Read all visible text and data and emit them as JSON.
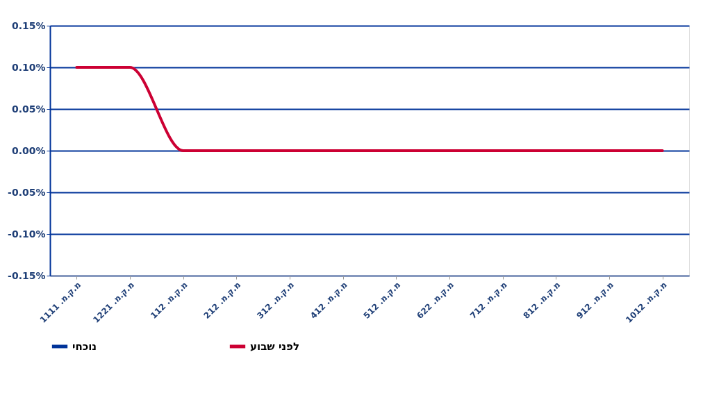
{
  "chart_data": {
    "type": "line",
    "categories": [
      "מ.ק.מ. 1111",
      "מ.ק.מ. 1221",
      "מ.ק.מ. 112",
      "מ.ק.מ. 212",
      "מ.ק.מ. 312",
      "מ.ק.מ. 412",
      "מ.ק.מ. 512",
      "מ.ק.מ. 622",
      "מ.ק.מ. 712",
      "מ.ק.מ. 812",
      "מ.ק.מ. 912",
      "מ.ק.מ. 1012"
    ],
    "series": [
      {
        "name": "נוכחי",
        "color": "#003399",
        "values": [
          null,
          null,
          null,
          null,
          null,
          null,
          null,
          null,
          null,
          null,
          null,
          null
        ]
      },
      {
        "name": "לפני שבוע",
        "color": "#cc0033",
        "values": [
          0.1,
          0.1,
          0.0,
          0.0,
          0.0,
          0.0,
          0.0,
          0.0,
          0.0,
          0.0,
          0.0,
          0.0
        ]
      }
    ],
    "ylim": [
      -0.15,
      0.15
    ],
    "yticks": [
      {
        "value": -0.15,
        "label": "-0.15%"
      },
      {
        "value": -0.1,
        "label": "-0.10%"
      },
      {
        "value": -0.05,
        "label": "-0.05%"
      },
      {
        "value": 0,
        "label": "0.00%"
      },
      {
        "value": 0.05,
        "label": "0.05%"
      },
      {
        "value": 0.1,
        "label": "0.10%"
      },
      {
        "value": 0.15,
        "label": "0.15%"
      }
    ],
    "grid": "y",
    "legend": "bottom",
    "marker": "none",
    "line_style": "solid"
  }
}
